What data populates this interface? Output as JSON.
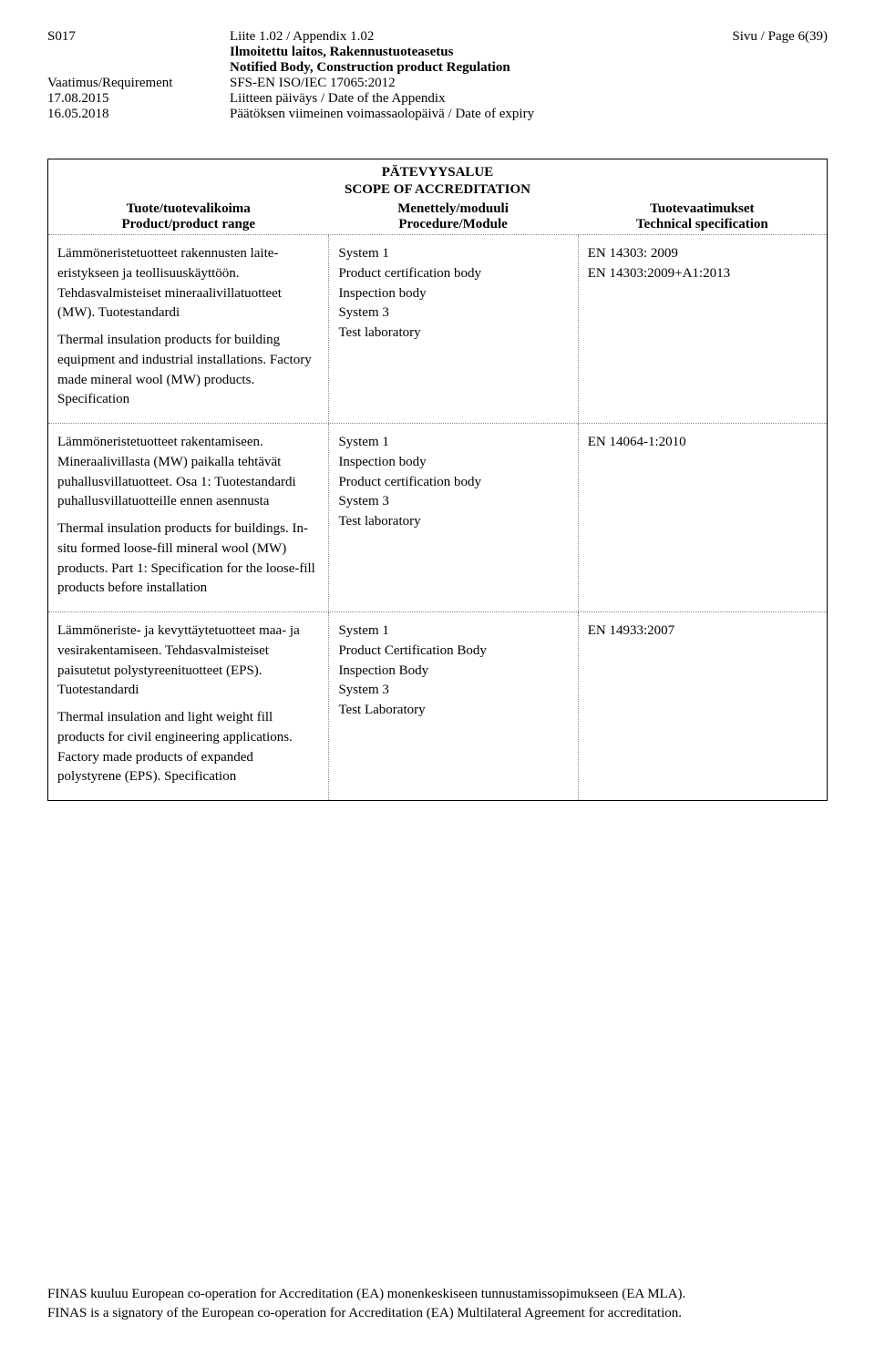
{
  "header": {
    "code": "S017",
    "appendix_fi": "Liite 1.02 / Appendix 1.02",
    "page": "Sivu / Page 6(39)",
    "line2_fi": "Ilmoitettu laitos, Rakennustuoteasetus",
    "line3_en": "Notified Body, Construction product Regulation",
    "requirement_label": "Vaatimus/Requirement",
    "requirement_value": "SFS-EN ISO/IEC 17065:2012",
    "date1": "17.08.2015",
    "date1_label": "Liitteen päiväys / Date of the Appendix",
    "date2": "16.05.2018",
    "date2_label": "Päätöksen viimeinen voimassaolopäivä / Date of expiry"
  },
  "scope": {
    "title_fi": "PÄTEVYYSALUE",
    "title_en": "SCOPE OF ACCREDITATION",
    "head": {
      "col1_fi": "Tuote/tuotevalikoima",
      "col1_en": "Product/product range",
      "col2_fi": "Menettely/moduuli",
      "col2_en": "Procedure/Module",
      "col3_fi": "Tuotevaatimukset",
      "col3_en": "Technical specification"
    },
    "rows": [
      {
        "product_fi": "Lämmöneristetuotteet rakennusten laite-eristykseen ja teollisuuskäyttöön. Tehdasvalmisteiset mineraalivillatuotteet (MW). Tuotestandardi",
        "product_en": "Thermal insulation products for building equipment and industrial installations. Factory made mineral wool (MW) products. Specification",
        "procedure": [
          "System 1",
          "Product certification body",
          "Inspection body",
          "System 3",
          "Test laboratory"
        ],
        "spec": [
          "EN 14303: 2009",
          "EN 14303:2009+A1:2013"
        ]
      },
      {
        "product_fi": "Lämmöneristetuotteet rakentamiseen. Mineraalivillasta (MW) paikalla tehtävät puhallusvillatuotteet. Osa 1: Tuotestandardi puhallusvillatuotteille ennen asennusta",
        "product_en": "Thermal insulation products for buildings. In-situ formed loose-fill mineral wool (MW) products. Part 1: Specification for the loose-fill products before installation",
        "procedure": [
          "System 1",
          "Inspection body",
          "Product certification body",
          "System 3",
          "Test laboratory"
        ],
        "spec": [
          "EN 14064-1:2010"
        ]
      },
      {
        "product_fi": "Lämmöneriste- ja kevyttäytetuotteet maa- ja vesirakentamiseen. Tehdasvalmisteiset paisutetut polystyreenituotteet (EPS). Tuotestandardi",
        "product_en": "Thermal insulation and light weight fill products for civil engineering applications. Factory made products of expanded polystyrene (EPS). Specification",
        "procedure": [
          "System 1",
          "Product Certification Body",
          "Inspection Body",
          "System 3",
          "Test Laboratory"
        ],
        "spec": [
          "EN 14933:2007"
        ]
      }
    ]
  },
  "footer": {
    "line1": "FINAS kuuluu European co-operation for Accreditation (EA) monenkeskiseen tunnustamissopimukseen (EA MLA).",
    "line2": "FINAS is a signatory of the European co-operation for Accreditation (EA) Multilateral Agreement for accreditation."
  }
}
